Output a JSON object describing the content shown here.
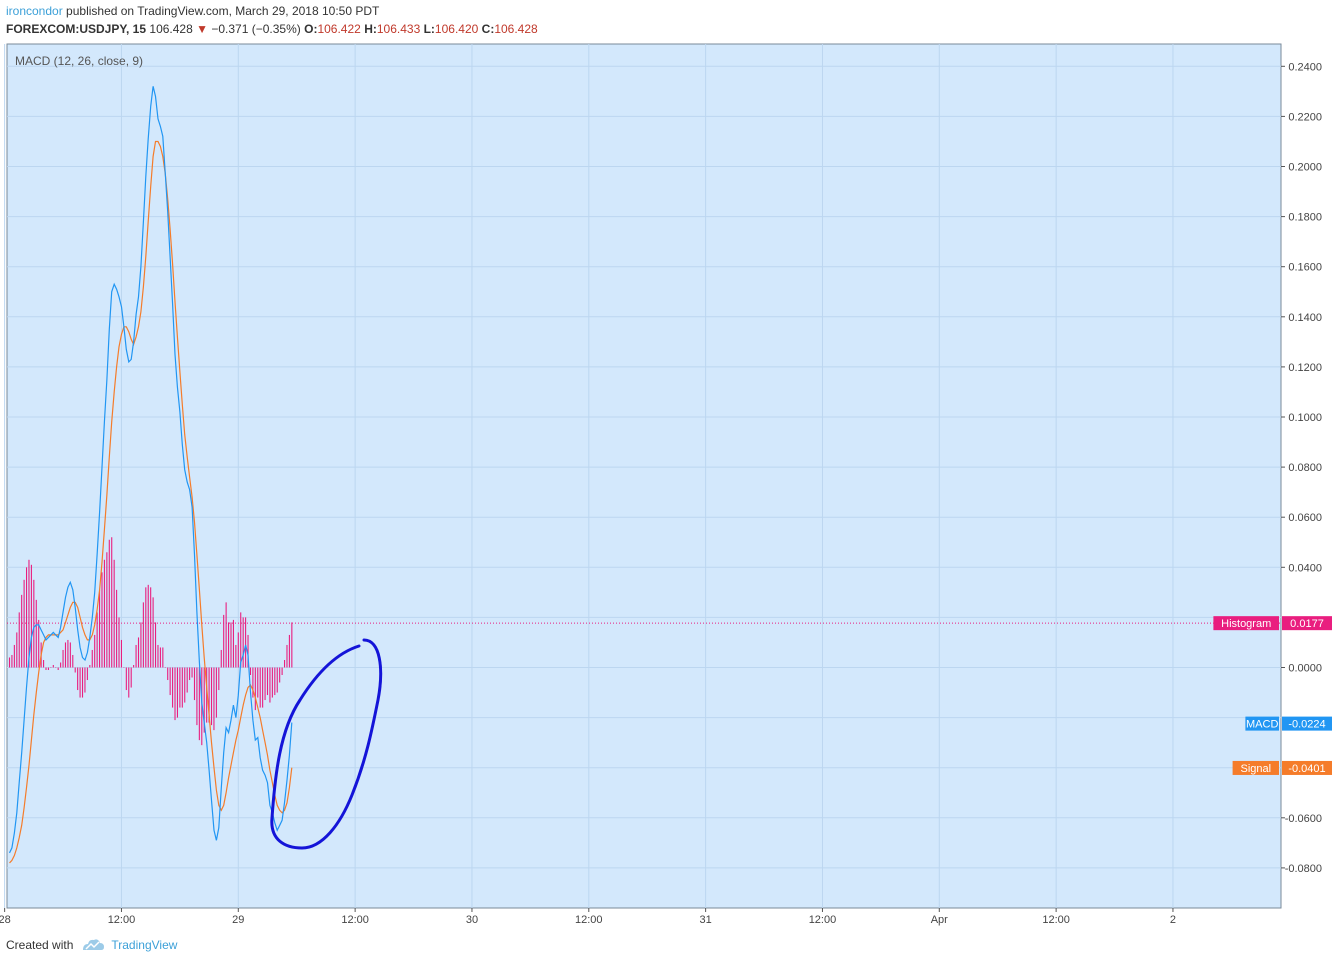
{
  "header": {
    "author": "ironcondor",
    "published_text": "published on TradingView.com, March 29, 2018 10:50 PDT",
    "symbol": "FOREXCOM:USDJPY, 15",
    "price": "106.428",
    "change": "−0.371 (−0.35%)",
    "o_label": "O:",
    "o_value": "106.422",
    "h_label": "H:",
    "h_value": "106.433",
    "l_label": "L:",
    "l_value": "106.420",
    "c_label": "C:",
    "c_value": "106.428"
  },
  "footer": {
    "created_with": "Created with",
    "brand": "TradingView"
  },
  "colors": {
    "background": "#d3e8fc",
    "grid": "#bcd6f0",
    "macd": "#2196f3",
    "signal": "#f57c2a",
    "histogram": "#e91e7f",
    "annotation": "#1414d8",
    "axis_text": "#444444"
  },
  "chart_data": {
    "type": "line",
    "title": "MACD (12, 26, close, 9)",
    "ylim": [
      -0.0905,
      0.2405
    ],
    "y_ticks": [
      "0.2400",
      "0.2200",
      "0.2000",
      "0.1800",
      "0.1600",
      "0.1400",
      "0.1200",
      "0.1000",
      "0.0800",
      "0.0600",
      "0.0400",
      "0.0000",
      "-0.0600",
      "-0.0800"
    ],
    "x_ticks": [
      {
        "label": "28",
        "t": -2
      },
      {
        "label": "12:00",
        "t": 46
      },
      {
        "label": "29",
        "t": 94
      },
      {
        "label": "12:00",
        "t": 142
      },
      {
        "label": "30",
        "t": 190
      },
      {
        "label": "12:00",
        "t": 238
      },
      {
        "label": "31",
        "t": 286
      },
      {
        "label": "12:00",
        "t": 334
      },
      {
        "label": "Apr",
        "t": 382
      },
      {
        "label": "12:00",
        "t": 430
      },
      {
        "label": "2",
        "t": 478
      }
    ],
    "x_unit": "15-minute bars",
    "series": [
      {
        "name": "MACD",
        "values": [
          -0.074,
          -0.072,
          -0.066,
          -0.058,
          -0.046,
          -0.034,
          -0.021,
          -0.008,
          0.004,
          0.012,
          0.016,
          0.017,
          0.017,
          0.015,
          0.013,
          0.011,
          0.012,
          0.013,
          0.014,
          0.013,
          0.012,
          0.016,
          0.022,
          0.028,
          0.032,
          0.034,
          0.031,
          0.024,
          0.015,
          0.008,
          0.004,
          0.003,
          0.006,
          0.012,
          0.02,
          0.03,
          0.045,
          0.062,
          0.08,
          0.098,
          0.115,
          0.135,
          0.15,
          0.153,
          0.151,
          0.148,
          0.144,
          0.136,
          0.127,
          0.122,
          0.123,
          0.13,
          0.141,
          0.148,
          0.16,
          0.178,
          0.196,
          0.211,
          0.224,
          0.232,
          0.228,
          0.219,
          0.216,
          0.212,
          0.197,
          0.182,
          0.164,
          0.145,
          0.125,
          0.112,
          0.102,
          0.089,
          0.079,
          0.074,
          0.071,
          0.064,
          0.045,
          0.022,
          0.002,
          -0.014,
          -0.022,
          -0.03,
          -0.041,
          -0.053,
          -0.065,
          -0.069,
          -0.064,
          -0.048,
          -0.034,
          -0.024,
          -0.026,
          -0.021,
          -0.015,
          -0.02,
          -0.011,
          0.002,
          0.005,
          0.009,
          0.005,
          -0.01,
          -0.021,
          -0.029,
          -0.028,
          -0.036,
          -0.041,
          -0.043,
          -0.046,
          -0.055,
          -0.058,
          -0.062,
          -0.065,
          -0.063,
          -0.061,
          -0.054,
          -0.045,
          -0.035,
          -0.022
        ]
      },
      {
        "name": "Signal",
        "values": [
          -0.078,
          -0.077,
          -0.075,
          -0.072,
          -0.068,
          -0.063,
          -0.056,
          -0.048,
          -0.039,
          -0.029,
          -0.019,
          -0.01,
          -0.002,
          0.005,
          0.01,
          0.012,
          0.013,
          0.013,
          0.013,
          0.013,
          0.013,
          0.014,
          0.015,
          0.018,
          0.021,
          0.024,
          0.026,
          0.026,
          0.024,
          0.02,
          0.016,
          0.013,
          0.011,
          0.011,
          0.013,
          0.017,
          0.023,
          0.031,
          0.042,
          0.055,
          0.069,
          0.084,
          0.098,
          0.11,
          0.12,
          0.128,
          0.133,
          0.136,
          0.136,
          0.134,
          0.131,
          0.129,
          0.132,
          0.136,
          0.142,
          0.152,
          0.164,
          0.178,
          0.192,
          0.204,
          0.21,
          0.21,
          0.208,
          0.204,
          0.197,
          0.187,
          0.175,
          0.161,
          0.146,
          0.132,
          0.118,
          0.105,
          0.093,
          0.084,
          0.076,
          0.068,
          0.058,
          0.045,
          0.031,
          0.017,
          0.004,
          -0.008,
          -0.019,
          -0.03,
          -0.04,
          -0.049,
          -0.055,
          -0.057,
          -0.055,
          -0.05,
          -0.044,
          -0.039,
          -0.034,
          -0.029,
          -0.025,
          -0.02,
          -0.015,
          -0.011,
          -0.008,
          -0.007,
          -0.009,
          -0.012,
          -0.016,
          -0.02,
          -0.025,
          -0.03,
          -0.035,
          -0.041,
          -0.046,
          -0.051,
          -0.055,
          -0.057,
          -0.058,
          -0.057,
          -0.054,
          -0.048,
          -0.04
        ]
      },
      {
        "name": "Histogram",
        "values": [
          0.004,
          0.005,
          0.009,
          0.014,
          0.022,
          0.029,
          0.035,
          0.04,
          0.043,
          0.041,
          0.035,
          0.027,
          0.019,
          0.01,
          0.003,
          -0.001,
          -0.001,
          0.0,
          0.001,
          0.0,
          -0.001,
          0.002,
          0.007,
          0.01,
          0.011,
          0.01,
          0.005,
          -0.002,
          -0.009,
          -0.012,
          -0.012,
          -0.01,
          -0.005,
          0.001,
          0.007,
          0.013,
          0.022,
          0.031,
          0.038,
          0.043,
          0.046,
          0.051,
          0.052,
          0.043,
          0.031,
          0.02,
          0.011,
          0.0,
          -0.009,
          -0.012,
          -0.008,
          0.001,
          0.009,
          0.012,
          0.018,
          0.026,
          0.032,
          0.033,
          0.032,
          0.028,
          0.018,
          0.009,
          0.008,
          0.008,
          0.0,
          -0.005,
          -0.011,
          -0.016,
          -0.021,
          -0.02,
          -0.016,
          -0.016,
          -0.014,
          -0.01,
          -0.005,
          -0.004,
          -0.013,
          -0.023,
          -0.029,
          -0.031,
          -0.026,
          -0.022,
          -0.022,
          -0.023,
          -0.025,
          -0.02,
          -0.009,
          0.007,
          0.021,
          0.026,
          0.018,
          0.018,
          0.019,
          0.009,
          0.014,
          0.022,
          0.02,
          0.02,
          0.013,
          -0.003,
          -0.012,
          -0.017,
          -0.012,
          -0.016,
          -0.016,
          -0.013,
          -0.011,
          -0.014,
          -0.012,
          -0.011,
          -0.01,
          -0.006,
          -0.003,
          0.003,
          0.009,
          0.013,
          0.018
        ]
      }
    ],
    "price_labels": [
      {
        "name": "Histogram",
        "value": "0.0177",
        "v": 0.0177
      },
      {
        "name": "MACD",
        "value": "-0.0224",
        "v": -0.0224
      },
      {
        "name": "Signal",
        "value": "-0.0401",
        "v": -0.0401
      }
    ],
    "grid": true
  }
}
